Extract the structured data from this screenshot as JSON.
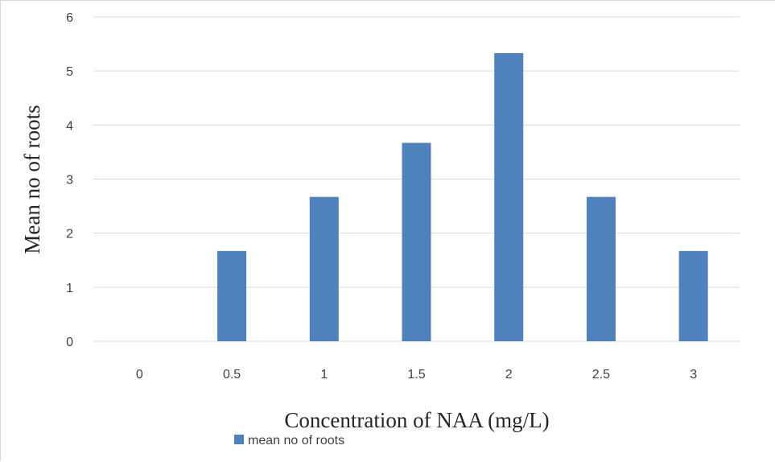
{
  "chart_data": {
    "type": "bar",
    "categories": [
      "0",
      "0.5",
      "1",
      "1.5",
      "2",
      "2.5",
      "3"
    ],
    "series": [
      {
        "name": "mean no of roots",
        "values": [
          0,
          1.67,
          2.67,
          3.67,
          5.33,
          2.67,
          1.67
        ]
      }
    ],
    "xlabel": "Concentration of NAA (mg/L)",
    "ylabel": "Mean no of roots",
    "ylim": [
      0,
      6
    ],
    "yticks": [
      "0",
      "1",
      "2",
      "3",
      "4",
      "5",
      "6"
    ],
    "grid": true,
    "legend_position": "bottom",
    "colors": {
      "bar": "#4f81bd",
      "grid": "#d9d9d9"
    }
  }
}
